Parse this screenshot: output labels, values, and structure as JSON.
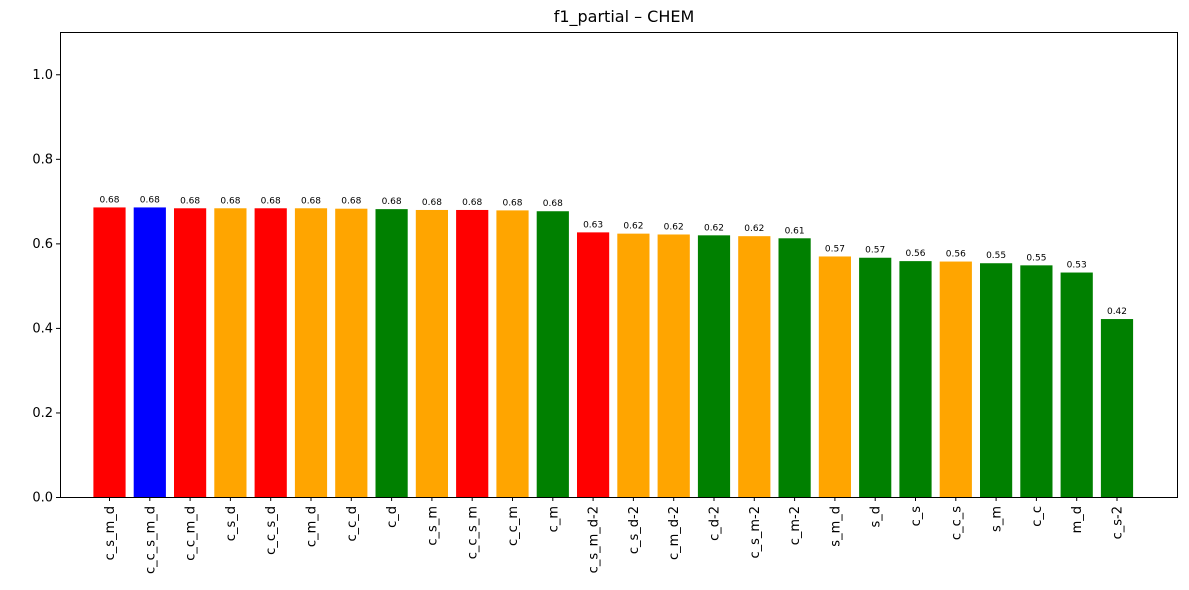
{
  "chart_data": {
    "type": "bar",
    "title": "f1_partial – CHEM",
    "xlabel": "",
    "ylabel": "",
    "ylim": [
      0,
      1.1
    ],
    "yticks": [
      "0.0",
      "0.2",
      "0.4",
      "0.6",
      "0.8",
      "1.0"
    ],
    "grid": false,
    "legend": "none",
    "categories": [
      "c_s_m_d",
      "c_c_s_m_d",
      "c_c_m_d",
      "c_s_d",
      "c_c_s_d",
      "c_m_d",
      "c_c_d",
      "c_d",
      "c_s_m",
      "c_c_s_m",
      "c_c_m",
      "c_m",
      "c_s_m_d-2",
      "c_s_d-2",
      "c_m_d-2",
      "c_d-2",
      "c_s_m-2",
      "c_m-2",
      "s_m_d",
      "s_d",
      "c_s",
      "c_c_s",
      "s_m",
      "c_c",
      "m_d",
      "c_s-2"
    ],
    "values": [
      0.685,
      0.685,
      0.683,
      0.683,
      0.683,
      0.683,
      0.682,
      0.681,
      0.679,
      0.679,
      0.678,
      0.676,
      0.626,
      0.623,
      0.621,
      0.619,
      0.617,
      0.612,
      0.569,
      0.566,
      0.558,
      0.557,
      0.553,
      0.548,
      0.531,
      0.421
    ],
    "value_labels": [
      "0.68",
      "0.68",
      "0.68",
      "0.68",
      "0.68",
      "0.68",
      "0.68",
      "0.68",
      "0.68",
      "0.68",
      "0.68",
      "0.68",
      "0.63",
      "0.62",
      "0.62",
      "0.62",
      "0.62",
      "0.61",
      "0.57",
      "0.57",
      "0.56",
      "0.56",
      "0.55",
      "0.55",
      "0.53",
      "0.42"
    ],
    "colors": [
      "#ff0000",
      "#0000ff",
      "#ff0000",
      "#ffa500",
      "#ff0000",
      "#ffa500",
      "#ffa500",
      "#008000",
      "#ffa500",
      "#ff0000",
      "#ffa500",
      "#008000",
      "#ff0000",
      "#ffa500",
      "#ffa500",
      "#008000",
      "#ffa500",
      "#008000",
      "#ffa500",
      "#008000",
      "#008000",
      "#ffa500",
      "#008000",
      "#008000",
      "#008000",
      "#008000"
    ]
  }
}
